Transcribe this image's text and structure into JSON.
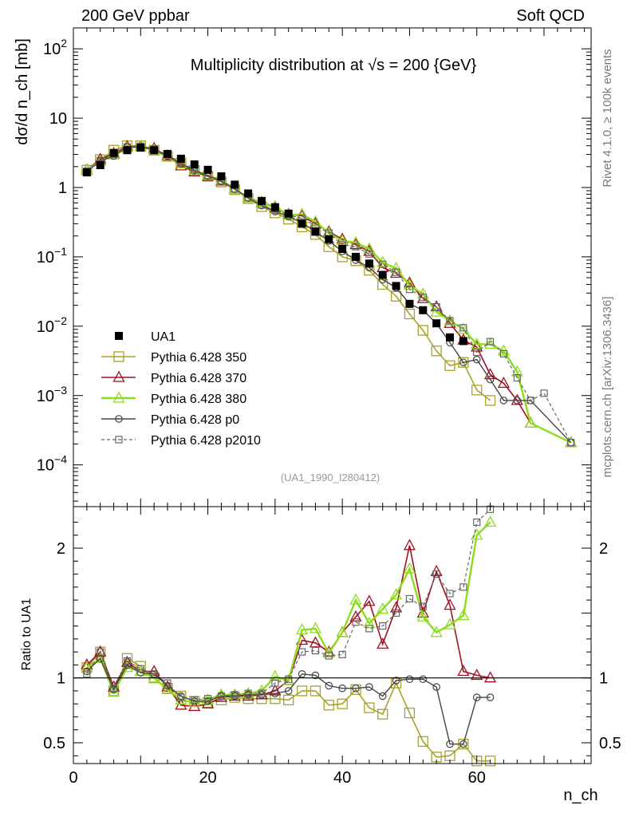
{
  "header": {
    "left": "200 GeV ppbar",
    "right": "Soft QCD"
  },
  "side_labels": {
    "top": "Rivet 4.1.0, ≥ 100k events",
    "bottom": "mcplots.cern.ch [arXiv:1306.3436]"
  },
  "colors": {
    "ua1": "#000000",
    "p350": "#a8a22b",
    "p370": "#a01020",
    "p380": "#8edb1c",
    "p0": "#444444",
    "p2010": "#666666"
  },
  "chart_data": [
    {
      "type": "line",
      "title": "Multiplicity distribution at √s = 200 {GeV}",
      "ylabel": "dσ/d n_ch [mb]",
      "xlabel": "n_ch",
      "yscale": "log",
      "ylim": [
        2.5e-05,
        200
      ],
      "xlim": [
        0,
        77
      ],
      "watermark": "(UA1_1990_I280412)",
      "yticks": [
        {
          "v": 100,
          "label": "10",
          "sup": "2"
        },
        {
          "v": 10,
          "label": "10",
          "sup": ""
        },
        {
          "v": 1,
          "label": "1",
          "sup": ""
        },
        {
          "v": 0.1,
          "label": "10",
          "sup": "−1"
        },
        {
          "v": 0.01,
          "label": "10",
          "sup": "−2"
        },
        {
          "v": 0.001,
          "label": "10",
          "sup": "−3"
        },
        {
          "v": 0.0001,
          "label": "10",
          "sup": "−4"
        }
      ],
      "legend": [
        {
          "key": "ua1",
          "label": "UA1"
        },
        {
          "key": "p350",
          "label": "Pythia 6.428 350"
        },
        {
          "key": "p370",
          "label": "Pythia 6.428 370"
        },
        {
          "key": "p380",
          "label": "Pythia 6.428 380"
        },
        {
          "key": "p0",
          "label": "Pythia 6.428 p0"
        },
        {
          "key": "p2010",
          "label": "Pythia 6.428 p2010"
        }
      ],
      "x": [
        2,
        4,
        6,
        8,
        10,
        12,
        14,
        16,
        18,
        20,
        22,
        24,
        26,
        28,
        30,
        32,
        34,
        36,
        38,
        40,
        42,
        44,
        46,
        48,
        50,
        52,
        54,
        56,
        58,
        60,
        62,
        64,
        66,
        68,
        70,
        72,
        74
      ],
      "series": [
        {
          "key": "ua1",
          "name": "UA1",
          "values": [
            1.65,
            2.1,
            3.15,
            3.45,
            3.75,
            3.45,
            3.05,
            2.6,
            2.15,
            1.8,
            1.45,
            1.1,
            0.82,
            0.64,
            0.52,
            0.42,
            0.3,
            0.23,
            0.18,
            0.13,
            0.1,
            0.08,
            0.055,
            0.038,
            0.021,
            0.017,
            0.011,
            0.0069,
            0.0061,
            null,
            null,
            null,
            null,
            null,
            null,
            null,
            null
          ]
        },
        {
          "key": "p350",
          "name": "Pythia 6.428 350",
          "values": [
            1.78,
            2.52,
            3.45,
            4.0,
            4.0,
            3.45,
            2.8,
            2.25,
            1.76,
            1.45,
            1.2,
            0.93,
            0.69,
            0.53,
            0.43,
            0.35,
            0.27,
            0.21,
            0.14,
            0.1,
            0.088,
            0.064,
            0.04,
            0.027,
            0.015,
            0.0087,
            0.0044,
            0.0027,
            0.003,
            0.0012,
            0.00085,
            null,
            null,
            null,
            null,
            null,
            null
          ]
        },
        {
          "key": "p370",
          "name": "Pythia 6.428 370",
          "values": [
            1.8,
            2.55,
            3.1,
            3.9,
            3.9,
            3.65,
            2.85,
            2.05,
            1.68,
            1.45,
            1.24,
            0.95,
            0.71,
            0.61,
            0.51,
            0.41,
            0.39,
            0.3,
            0.23,
            0.18,
            0.15,
            0.12,
            0.07,
            0.058,
            0.042,
            0.025,
            0.019,
            0.011,
            0.0063,
            0.005,
            0.002,
            0.0015,
            0.00085,
            0.0004,
            null,
            null,
            0.00021
          ]
        },
        {
          "key": "p380",
          "name": "Pythia 6.428 380",
          "values": [
            1.78,
            2.4,
            2.95,
            3.7,
            3.9,
            3.45,
            2.75,
            2.2,
            1.75,
            1.5,
            1.27,
            0.95,
            0.71,
            0.61,
            0.53,
            0.4,
            0.41,
            0.32,
            0.22,
            0.17,
            0.16,
            0.13,
            0.083,
            0.068,
            0.039,
            0.029,
            0.016,
            0.012,
            0.009,
            0.0055,
            0.0055,
            0.0044,
            0.0022,
            0.0004,
            null,
            null,
            0.00021
          ]
        },
        {
          "key": "p0",
          "name": "Pythia 6.428 p0",
          "values": [
            1.7,
            2.4,
            2.85,
            3.8,
            3.85,
            3.5,
            2.85,
            2.2,
            1.75,
            1.48,
            1.24,
            0.95,
            0.71,
            0.55,
            0.45,
            0.38,
            0.31,
            0.23,
            0.17,
            0.12,
            0.09,
            0.07,
            0.047,
            0.036,
            0.021,
            0.017,
            0.011,
            0.0058,
            0.003,
            0.0033,
            0.0017,
            0.00085,
            0.00085,
            0.00085,
            null,
            null,
            0.00021
          ]
        },
        {
          "key": "p2010",
          "name": "Pythia 6.428 p2010",
          "values": [
            1.72,
            2.45,
            3.0,
            3.85,
            3.95,
            3.55,
            2.95,
            2.3,
            1.8,
            1.5,
            1.25,
            0.96,
            0.72,
            0.56,
            0.47,
            0.4,
            0.36,
            0.28,
            0.22,
            0.15,
            0.14,
            0.11,
            0.078,
            0.06,
            0.034,
            0.026,
            0.019,
            0.012,
            0.0095,
            0.0042,
            0.006,
            0.004,
            0.0018,
            0.00085,
            0.00108,
            null,
            0.00021
          ]
        }
      ]
    },
    {
      "type": "line",
      "ylabel": "Ratio to UA1",
      "xlabel": "n_ch",
      "ylim": [
        0.34,
        2.32
      ],
      "xlim": [
        0,
        77
      ],
      "yticks": [
        {
          "v": 2,
          "label": "2"
        },
        {
          "v": 1,
          "label": "1"
        },
        {
          "v": 0.5,
          "label": "0.5"
        }
      ],
      "xticks": [
        0,
        20,
        40,
        60
      ],
      "reference_line": 1,
      "x": [
        2,
        4,
        6,
        8,
        10,
        12,
        14,
        16,
        18,
        20,
        22,
        24,
        26,
        28,
        30,
        32,
        34,
        36,
        38,
        40,
        42,
        44,
        46,
        48,
        50,
        52,
        54,
        56,
        58,
        60,
        62
      ],
      "series": [
        {
          "key": "p350",
          "name": "Pythia 6.428 350",
          "values": [
            1.08,
            1.2,
            0.9,
            1.15,
            1.09,
            1.0,
            0.92,
            0.86,
            0.82,
            0.81,
            0.83,
            0.85,
            0.84,
            0.84,
            0.84,
            0.83,
            0.9,
            0.9,
            0.79,
            0.8,
            0.91,
            0.77,
            0.72,
            0.96,
            0.73,
            0.51,
            0.39,
            0.4,
            0.49,
            0.36,
            0.36
          ]
        },
        {
          "key": "p370",
          "name": "Pythia 6.428 370",
          "values": [
            1.1,
            1.2,
            0.93,
            1.12,
            1.05,
            1.05,
            0.93,
            0.79,
            0.78,
            0.8,
            0.85,
            0.86,
            0.86,
            0.87,
            0.9,
            0.98,
            1.29,
            1.27,
            1.2,
            1.35,
            1.47,
            1.59,
            1.26,
            1.54,
            2.02,
            1.5,
            1.82,
            1.56,
            1.05,
            1.02,
            1.0
          ]
        },
        {
          "key": "p380",
          "name": "Pythia 6.428 380",
          "values": [
            1.08,
            1.15,
            0.89,
            1.08,
            1.05,
            1.0,
            0.91,
            0.83,
            0.81,
            0.83,
            0.87,
            0.87,
            0.88,
            0.9,
            1.01,
            0.98,
            1.37,
            1.38,
            1.19,
            1.35,
            1.6,
            1.42,
            1.53,
            1.64,
            1.84,
            1.47,
            1.35,
            1.41,
            1.48,
            2.1,
            2.2
          ]
        },
        {
          "key": "p0",
          "name": "Pythia 6.428 p0",
          "values": [
            1.05,
            1.15,
            0.91,
            1.1,
            1.04,
            1.03,
            0.94,
            0.86,
            0.82,
            0.82,
            0.86,
            0.86,
            0.87,
            0.87,
            0.88,
            0.9,
            1.03,
            1.02,
            0.94,
            0.92,
            0.92,
            0.93,
            0.86,
            0.98,
            0.99,
            0.99,
            0.93,
            0.49,
            0.49,
            0.85,
            0.85
          ]
        },
        {
          "key": "p2010",
          "name": "Pythia 6.428 p2010",
          "values": [
            1.03,
            1.2,
            0.92,
            1.13,
            1.07,
            1.03,
            0.96,
            0.85,
            0.83,
            0.84,
            0.86,
            0.87,
            0.88,
            0.88,
            0.96,
            0.99,
            1.2,
            1.21,
            1.17,
            1.18,
            1.43,
            1.38,
            1.4,
            1.5,
            1.61,
            1.55,
            1.8,
            1.65,
            1.7,
            2.2,
            2.3
          ]
        }
      ]
    }
  ]
}
